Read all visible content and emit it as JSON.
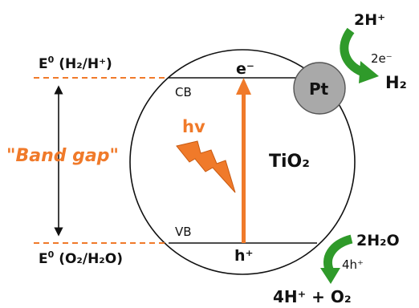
{
  "colors": {
    "orange": "#f07a2a",
    "green": "#2f9a2a",
    "pt_fill": "#a9a9a9",
    "line": "#111111"
  },
  "labels": {
    "e0_top_prefix": "E",
    "e0_top_sup": "0",
    "e0_top_rest": " (H₂/H⁺)",
    "e0_bottom_prefix": "E",
    "e0_bottom_sup": "0",
    "e0_bottom_rest": " (O₂/H₂O)",
    "band_gap": "\"Band gap\"",
    "cb": "CB",
    "vb": "VB",
    "electron": "e⁻",
    "hole": "h⁺",
    "hv": "hv",
    "tio2": "TiO₂",
    "pt": "Pt",
    "two_h_plus": "2H⁺",
    "two_e_minus": "2e⁻",
    "h2": "H₂",
    "two_h2o": "2H₂O",
    "four_h_plus_hole": "4h⁺",
    "products_o2": "4H⁺ + O₂"
  },
  "icons": {
    "lightning": "lightning-bolt-icon",
    "arrow_reduction": "curved-arrow-icon",
    "arrow_oxidation": "curved-arrow-icon"
  }
}
